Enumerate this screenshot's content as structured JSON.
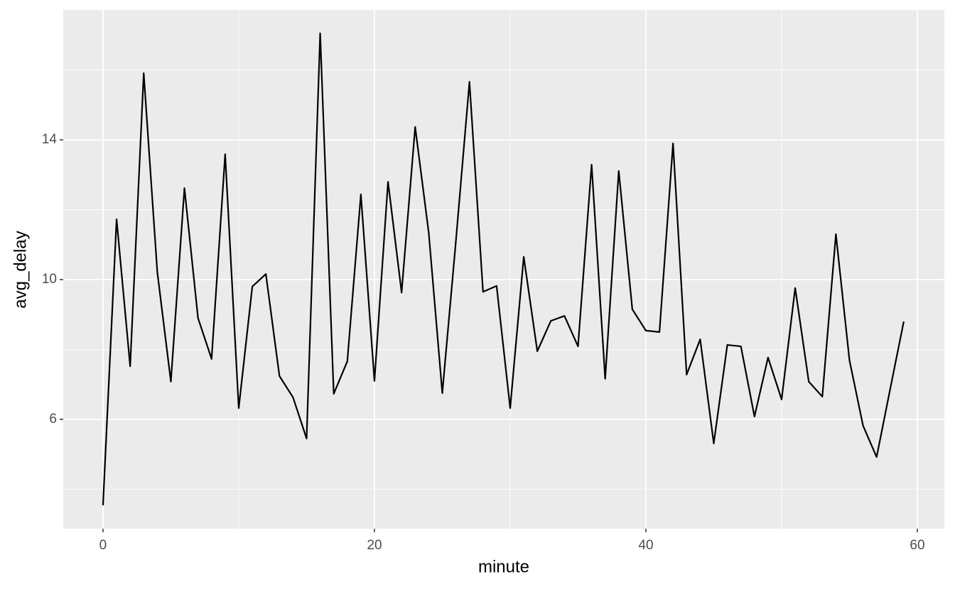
{
  "chart_data": {
    "type": "line",
    "x_label": "minute",
    "y_label": "avg_delay",
    "x": [
      0,
      1,
      2,
      3,
      4,
      5,
      6,
      7,
      8,
      9,
      10,
      11,
      12,
      13,
      14,
      15,
      16,
      17,
      18,
      19,
      20,
      21,
      22,
      23,
      24,
      25,
      26,
      27,
      28,
      29,
      30,
      31,
      32,
      33,
      34,
      35,
      36,
      37,
      38,
      39,
      40,
      41,
      42,
      43,
      44,
      45,
      46,
      47,
      48,
      49,
      50,
      51,
      52,
      53,
      54,
      55,
      56,
      57,
      58,
      59
    ],
    "series": [
      {
        "color": "#000000",
        "values": [
          3.54,
          11.73,
          7.52,
          15.91,
          10.22,
          7.08,
          12.62,
          8.9,
          7.73,
          13.59,
          6.32,
          9.8,
          10.16,
          7.24,
          6.63,
          5.45,
          17.05,
          6.73,
          7.66,
          12.44,
          7.1,
          12.8,
          9.63,
          14.37,
          11.34,
          6.75,
          11.1,
          15.66,
          9.65,
          9.82,
          6.32,
          10.65,
          7.95,
          8.82,
          8.96,
          8.09,
          13.29,
          7.16,
          13.11,
          9.15,
          8.54,
          8.5,
          13.9,
          7.28,
          8.29,
          5.31,
          8.13,
          8.09,
          6.08,
          7.77,
          6.57,
          9.76,
          7.08,
          6.65,
          11.3,
          7.69,
          5.82,
          4.92,
          6.87,
          8.8
        ]
      }
    ],
    "xlim": [
      -2.93,
      61.99
    ],
    "ylim": [
      2.87,
      17.72
    ],
    "xticks": [
      0,
      20,
      40,
      60
    ],
    "yticks": [
      6,
      10,
      14
    ],
    "x_minor_ticks": [
      10,
      30,
      50
    ],
    "y_minor_ticks": [
      4,
      8,
      12,
      16
    ],
    "grid": true
  }
}
